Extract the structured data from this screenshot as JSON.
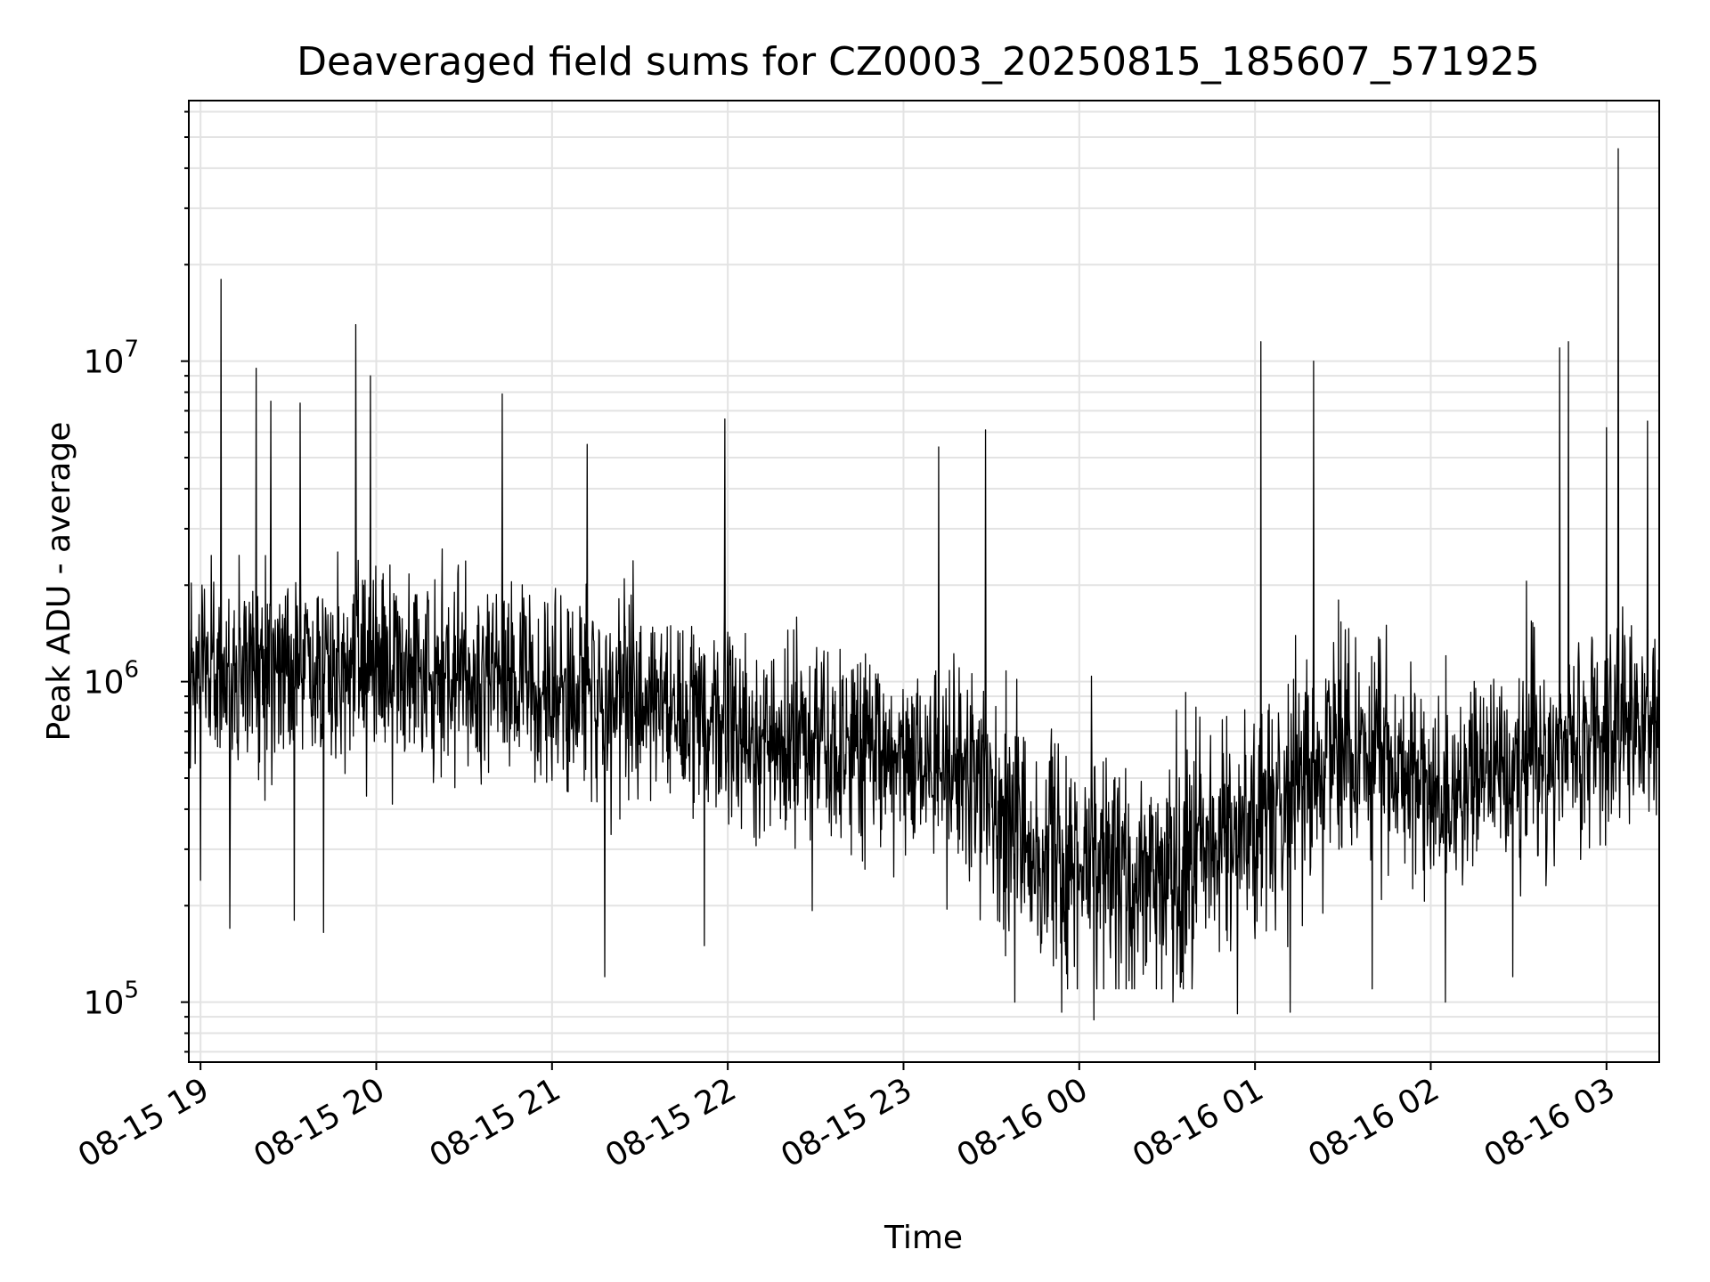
{
  "chart_data": {
    "type": "line",
    "title": "Deaveraged field sums for CZ0003_20250815_185607_571925",
    "xlabel": "Time",
    "ylabel": "Peak ADU - average",
    "yscale": "log",
    "xlim": [
      "2025-08-15 18:56",
      "2025-08-16 03:18"
    ],
    "ylim": [
      65000,
      65000000
    ],
    "grid": true,
    "x_ticks": [
      "08-15 19",
      "08-15 20",
      "08-15 21",
      "08-15 22",
      "08-15 23",
      "08-16 00",
      "08-16 01",
      "08-16 02",
      "08-16 03"
    ],
    "y_ticks": [
      {
        "base": "10",
        "exp": "5"
      },
      {
        "base": "10",
        "exp": "6"
      },
      {
        "base": "10",
        "exp": "7"
      }
    ],
    "line_color": "#000000",
    "sample_interval_s": 10,
    "baseline": [
      {
        "t": "2025-08-15 18:56",
        "y": 1100000
      },
      {
        "t": "2025-08-15 19:20",
        "y": 1100000
      },
      {
        "t": "2025-08-15 20:00",
        "y": 1100000
      },
      {
        "t": "2025-08-15 20:40",
        "y": 1050000
      },
      {
        "t": "2025-08-15 21:20",
        "y": 900000
      },
      {
        "t": "2025-08-15 22:00",
        "y": 750000
      },
      {
        "t": "2025-08-15 22:40",
        "y": 600000
      },
      {
        "t": "2025-08-15 23:20",
        "y": 550000
      },
      {
        "t": "2025-08-15 23:45",
        "y": 300000
      },
      {
        "t": "2025-08-16 00:15",
        "y": 250000
      },
      {
        "t": "2025-08-16 00:45",
        "y": 300000
      },
      {
        "t": "2025-08-16 01:10",
        "y": 400000
      },
      {
        "t": "2025-08-16 01:30",
        "y": 650000
      },
      {
        "t": "2025-08-16 02:00",
        "y": 450000
      },
      {
        "t": "2025-08-16 02:30",
        "y": 550000
      },
      {
        "t": "2025-08-16 03:00",
        "y": 750000
      },
      {
        "t": "2025-08-16 03:18",
        "y": 700000
      }
    ],
    "peaks": [
      {
        "t": "2025-08-15 19:07",
        "y": 18000000
      },
      {
        "t": "2025-08-15 19:19",
        "y": 9500000
      },
      {
        "t": "2025-08-15 19:24",
        "y": 7500000
      },
      {
        "t": "2025-08-15 19:34",
        "y": 7400000
      },
      {
        "t": "2025-08-15 19:53",
        "y": 13000000
      },
      {
        "t": "2025-08-15 19:58",
        "y": 9000000
      },
      {
        "t": "2025-08-15 20:43",
        "y": 7900000
      },
      {
        "t": "2025-08-15 21:12",
        "y": 5500000
      },
      {
        "t": "2025-08-15 21:59",
        "y": 6600000
      },
      {
        "t": "2025-08-15 23:12",
        "y": 5400000
      },
      {
        "t": "2025-08-15 23:28",
        "y": 6100000
      },
      {
        "t": "2025-08-16 01:02",
        "y": 11500000
      },
      {
        "t": "2025-08-16 01:20",
        "y": 10000000
      },
      {
        "t": "2025-08-16 02:44",
        "y": 11000000
      },
      {
        "t": "2025-08-16 02:47",
        "y": 11500000
      },
      {
        "t": "2025-08-16 03:00",
        "y": 6200000
      },
      {
        "t": "2025-08-16 03:04",
        "y": 46000000
      },
      {
        "t": "2025-08-16 03:14",
        "y": 6500000
      }
    ],
    "troughs": [
      {
        "t": "2025-08-15 19:00",
        "y": 240000
      },
      {
        "t": "2025-08-15 19:10",
        "y": 170000
      },
      {
        "t": "2025-08-15 19:32",
        "y": 180000
      },
      {
        "t": "2025-08-15 19:42",
        "y": 165000
      },
      {
        "t": "2025-08-15 21:18",
        "y": 120000
      },
      {
        "t": "2025-08-15 21:52",
        "y": 150000
      },
      {
        "t": "2025-08-15 23:38",
        "y": 100000
      },
      {
        "t": "2025-08-15 23:54",
        "y": 93000
      },
      {
        "t": "2025-08-16 00:05",
        "y": 88000
      },
      {
        "t": "2025-08-16 00:32",
        "y": 100000
      },
      {
        "t": "2025-08-16 00:54",
        "y": 92000
      },
      {
        "t": "2025-08-16 01:12",
        "y": 93000
      },
      {
        "t": "2025-08-16 01:40",
        "y": 110000
      },
      {
        "t": "2025-08-16 02:05",
        "y": 100000
      },
      {
        "t": "2025-08-16 02:28",
        "y": 120000
      }
    ]
  }
}
